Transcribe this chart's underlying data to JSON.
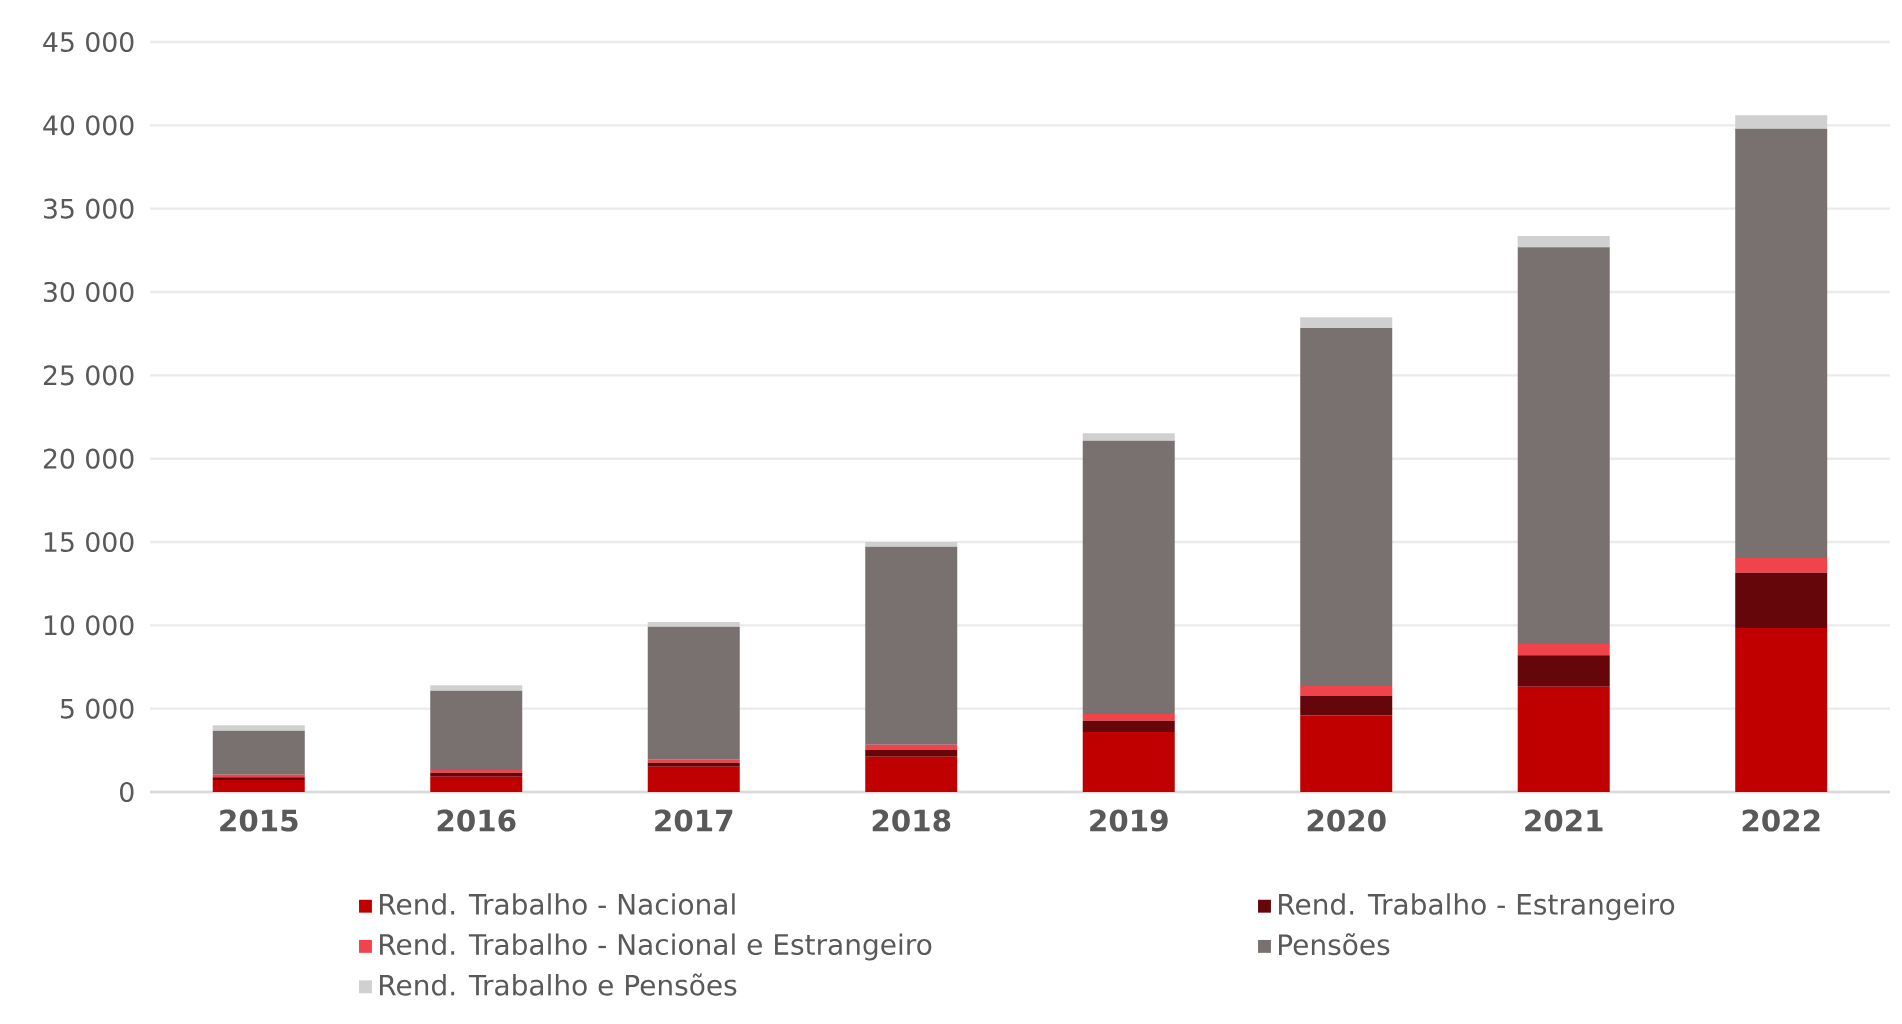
{
  "chart_data": {
    "type": "bar",
    "stacked": true,
    "categories": [
      "2015",
      "2016",
      "2017",
      "2018",
      "2019",
      "2020",
      "2021",
      "2022"
    ],
    "series": [
      {
        "name": "Rend. Trabalho - Nacional",
        "color": "#c00000",
        "values": [
          720,
          920,
          1520,
          2120,
          3600,
          4600,
          6320,
          9840
        ]
      },
      {
        "name": "Rend. Trabalho - Estrangeiro",
        "color": "#65060b",
        "values": [
          160,
          240,
          240,
          400,
          680,
          1160,
          1880,
          3320
        ]
      },
      {
        "name": "Rend. Trabalho - Nacional e Estrangeiro",
        "color": "#f0434c",
        "values": [
          160,
          160,
          200,
          320,
          400,
          600,
          680,
          880
        ]
      },
      {
        "name": "Pensões",
        "color": "#787170",
        "values": [
          2640,
          4760,
          7960,
          11880,
          16400,
          21480,
          23800,
          25760
        ]
      },
      {
        "name": "Rend. Trabalho e Pensões",
        "color": "#d0d0d0",
        "values": [
          320,
          320,
          280,
          280,
          440,
          640,
          680,
          800
        ]
      }
    ],
    "ylim": [
      0,
      45000
    ],
    "yticks": [
      {
        "value": 0,
        "label": "0"
      },
      {
        "value": 5000,
        "label": "5 000"
      },
      {
        "value": 10000,
        "label": "10 000"
      },
      {
        "value": 15000,
        "label": "15 000"
      },
      {
        "value": 20000,
        "label": "20 000"
      },
      {
        "value": 25000,
        "label": "25 000"
      },
      {
        "value": 30000,
        "label": "30 000"
      },
      {
        "value": 35000,
        "label": "35 000"
      },
      {
        "value": 40000,
        "label": "40 000"
      },
      {
        "value": 45000,
        "label": "45 000"
      }
    ],
    "grid": "y",
    "legend": "bottom"
  }
}
